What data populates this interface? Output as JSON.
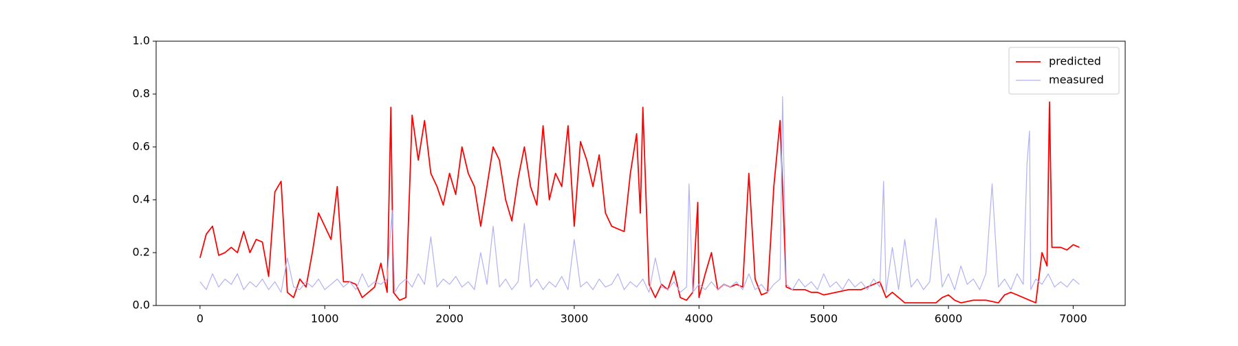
{
  "chart_data": {
    "type": "line",
    "xlim": [
      -352,
      7417
    ],
    "xticks": [
      0,
      1000,
      2000,
      3000,
      4000,
      5000,
      6000,
      7000
    ],
    "ylim": [
      0,
      1
    ],
    "yticks": [
      {
        "value": 0,
        "label": "0.0"
      },
      0.2,
      0.4,
      0.6,
      0.8,
      {
        "value": 1,
        "label": "1.0"
      }
    ],
    "legend": "upper right",
    "series": [
      {
        "name": "predicted",
        "color": "#ff0000",
        "x": [
          0,
          50,
          100,
          150,
          200,
          250,
          300,
          350,
          400,
          450,
          500,
          550,
          600,
          650,
          700,
          750,
          800,
          850,
          900,
          950,
          1000,
          1050,
          1100,
          1150,
          1200,
          1250,
          1300,
          1350,
          1400,
          1450,
          1500,
          1530,
          1550,
          1600,
          1650,
          1700,
          1750,
          1800,
          1850,
          1900,
          1950,
          2000,
          2050,
          2100,
          2150,
          2200,
          2250,
          2300,
          2350,
          2400,
          2450,
          2500,
          2550,
          2600,
          2650,
          2700,
          2750,
          2800,
          2850,
          2900,
          2950,
          3000,
          3050,
          3100,
          3150,
          3200,
          3250,
          3300,
          3350,
          3400,
          3450,
          3500,
          3530,
          3550,
          3600,
          3650,
          3700,
          3750,
          3800,
          3850,
          3900,
          3950,
          3990,
          4000,
          4050,
          4100,
          4150,
          4200,
          4250,
          4300,
          4350,
          4400,
          4450,
          4500,
          4550,
          4600,
          4650,
          4700,
          4750,
          4800,
          4850,
          4900,
          4950,
          5000,
          5100,
          5200,
          5300,
          5400,
          5450,
          5500,
          5550,
          5600,
          5650,
          5700,
          5800,
          5900,
          5950,
          6000,
          6050,
          6100,
          6200,
          6300,
          6400,
          6450,
          6500,
          6550,
          6600,
          6650,
          6700,
          6750,
          6790,
          6810,
          6830,
          6900,
          6950,
          7000,
          7050
        ],
        "values": [
          0.18,
          0.27,
          0.3,
          0.19,
          0.2,
          0.22,
          0.2,
          0.28,
          0.2,
          0.25,
          0.24,
          0.11,
          0.43,
          0.47,
          0.05,
          0.03,
          0.1,
          0.07,
          0.2,
          0.35,
          0.3,
          0.25,
          0.45,
          0.09,
          0.09,
          0.08,
          0.03,
          0.05,
          0.07,
          0.16,
          0.05,
          0.75,
          0.05,
          0.02,
          0.03,
          0.72,
          0.55,
          0.7,
          0.5,
          0.45,
          0.38,
          0.5,
          0.42,
          0.6,
          0.5,
          0.45,
          0.3,
          0.45,
          0.6,
          0.55,
          0.4,
          0.32,
          0.48,
          0.6,
          0.45,
          0.38,
          0.68,
          0.4,
          0.5,
          0.45,
          0.68,
          0.3,
          0.62,
          0.55,
          0.45,
          0.57,
          0.35,
          0.3,
          0.29,
          0.28,
          0.5,
          0.65,
          0.35,
          0.75,
          0.08,
          0.03,
          0.08,
          0.06,
          0.13,
          0.03,
          0.02,
          0.05,
          0.39,
          0.03,
          0.12,
          0.2,
          0.06,
          0.08,
          0.07,
          0.08,
          0.07,
          0.5,
          0.1,
          0.04,
          0.05,
          0.45,
          0.7,
          0.07,
          0.06,
          0.06,
          0.06,
          0.05,
          0.05,
          0.04,
          0.05,
          0.06,
          0.06,
          0.08,
          0.09,
          0.03,
          0.05,
          0.03,
          0.01,
          0.01,
          0.01,
          0.01,
          0.03,
          0.04,
          0.02,
          0.01,
          0.02,
          0.02,
          0.01,
          0.04,
          0.05,
          0.04,
          0.03,
          0.02,
          0.01,
          0.2,
          0.15,
          0.77,
          0.22,
          0.22,
          0.21,
          0.23,
          0.22
        ]
      },
      {
        "name": "measured",
        "color": "#b0b0f8",
        "x": [
          0,
          50,
          100,
          150,
          200,
          250,
          300,
          350,
          400,
          450,
          500,
          550,
          600,
          650,
          700,
          750,
          800,
          850,
          900,
          950,
          1000,
          1050,
          1100,
          1150,
          1200,
          1250,
          1300,
          1350,
          1400,
          1450,
          1500,
          1540,
          1560,
          1600,
          1650,
          1700,
          1750,
          1800,
          1850,
          1900,
          1950,
          2000,
          2050,
          2100,
          2150,
          2200,
          2250,
          2300,
          2350,
          2400,
          2450,
          2500,
          2550,
          2600,
          2650,
          2700,
          2750,
          2800,
          2850,
          2900,
          2950,
          3000,
          3050,
          3100,
          3150,
          3200,
          3250,
          3300,
          3350,
          3400,
          3450,
          3500,
          3550,
          3600,
          3650,
          3700,
          3750,
          3800,
          3850,
          3900,
          3920,
          3950,
          4000,
          4050,
          4100,
          4150,
          4200,
          4250,
          4300,
          4350,
          4400,
          4450,
          4500,
          4550,
          4600,
          4650,
          4670,
          4700,
          4750,
          4800,
          4850,
          4900,
          4950,
          5000,
          5050,
          5100,
          5150,
          5200,
          5250,
          5300,
          5350,
          5400,
          5450,
          5480,
          5500,
          5550,
          5600,
          5650,
          5700,
          5750,
          5800,
          5850,
          5900,
          5950,
          6000,
          6050,
          6100,
          6150,
          6200,
          6250,
          6300,
          6350,
          6400,
          6450,
          6500,
          6550,
          6600,
          6630,
          6650,
          6660,
          6700,
          6750,
          6800,
          6850,
          6900,
          6950,
          7000,
          7050
        ],
        "values": [
          0.09,
          0.06,
          0.12,
          0.07,
          0.1,
          0.08,
          0.12,
          0.06,
          0.09,
          0.07,
          0.1,
          0.06,
          0.09,
          0.05,
          0.18,
          0.07,
          0.06,
          0.09,
          0.07,
          0.1,
          0.06,
          0.08,
          0.1,
          0.07,
          0.09,
          0.06,
          0.12,
          0.07,
          0.09,
          0.08,
          0.1,
          0.36,
          0.05,
          0.08,
          0.1,
          0.07,
          0.12,
          0.08,
          0.26,
          0.07,
          0.1,
          0.08,
          0.11,
          0.07,
          0.09,
          0.06,
          0.2,
          0.08,
          0.3,
          0.07,
          0.1,
          0.06,
          0.09,
          0.31,
          0.07,
          0.1,
          0.06,
          0.09,
          0.07,
          0.11,
          0.06,
          0.25,
          0.07,
          0.09,
          0.06,
          0.1,
          0.07,
          0.08,
          0.12,
          0.06,
          0.09,
          0.07,
          0.1,
          0.05,
          0.18,
          0.07,
          0.06,
          0.09,
          0.05,
          0.07,
          0.46,
          0.05,
          0.08,
          0.06,
          0.09,
          0.06,
          0.08,
          0.07,
          0.09,
          0.06,
          0.12,
          0.06,
          0.08,
          0.05,
          0.08,
          0.1,
          0.79,
          0.08,
          0.06,
          0.1,
          0.07,
          0.09,
          0.06,
          0.12,
          0.07,
          0.09,
          0.06,
          0.1,
          0.07,
          0.09,
          0.06,
          0.1,
          0.07,
          0.47,
          0.05,
          0.22,
          0.06,
          0.25,
          0.07,
          0.1,
          0.06,
          0.09,
          0.33,
          0.07,
          0.12,
          0.06,
          0.15,
          0.08,
          0.1,
          0.06,
          0.12,
          0.46,
          0.07,
          0.1,
          0.06,
          0.12,
          0.08,
          0.54,
          0.66,
          0.06,
          0.1,
          0.08,
          0.12,
          0.07,
          0.09,
          0.07,
          0.1,
          0.08
        ]
      }
    ]
  }
}
